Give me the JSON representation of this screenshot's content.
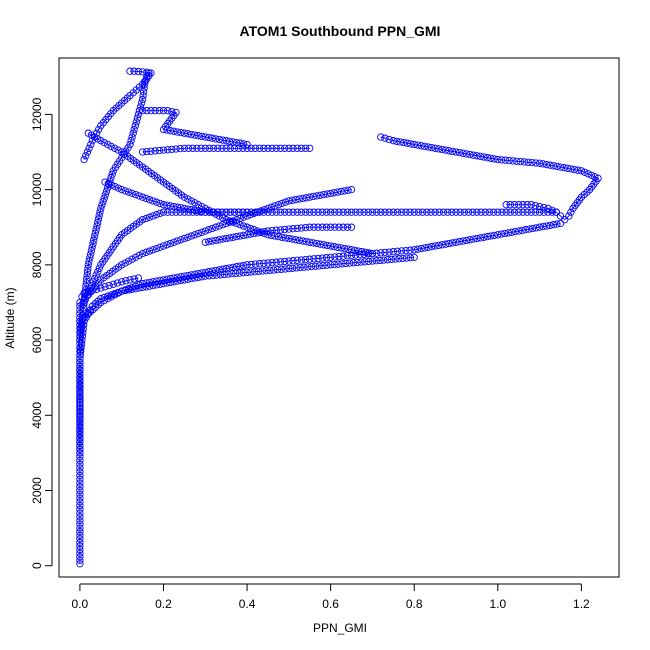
{
  "chart_data": {
    "type": "scatter",
    "title": "ATOM1 Southbound PPN_GMI",
    "xlabel": "PPN_GMI",
    "ylabel": "Altitude (m)",
    "xlim": [
      -0.05,
      1.29
    ],
    "ylim": [
      -300,
      13500
    ],
    "xticks": [
      0.0,
      0.2,
      0.4,
      0.6,
      0.8,
      1.0,
      1.2
    ],
    "xtick_labels": [
      "0.0",
      "0.2",
      "0.4",
      "0.6",
      "0.8",
      "1.0",
      "1.2"
    ],
    "yticks": [
      0,
      2000,
      4000,
      6000,
      8000,
      10000,
      12000
    ],
    "ytick_labels": [
      "0",
      "2000",
      "4000",
      "6000",
      "8000",
      "10000",
      "12000"
    ],
    "grid": false,
    "legend": "none",
    "marker": "open-circle",
    "color": "#0000ff",
    "series": [
      {
        "x": [
          0.0,
          0.0,
          0.0,
          0.0,
          0.0,
          0.0,
          0.0,
          0.0,
          0.0,
          0.0,
          0.005,
          0.01,
          0.02,
          0.04,
          0.07,
          0.1,
          0.14
        ],
        "y": [
          50,
          1000,
          2000,
          3000,
          4000,
          5000,
          5800,
          6400,
          6800,
          7000,
          7150,
          7250,
          7300,
          7350,
          7450,
          7550,
          7650
        ]
      },
      {
        "x": [
          0.0,
          0.0,
          0.01,
          0.03,
          0.05,
          0.1,
          0.15,
          0.2,
          0.25,
          0.3,
          0.4,
          0.5,
          0.6,
          0.7,
          0.8
        ],
        "y": [
          3000,
          5500,
          6500,
          6900,
          7100,
          7300,
          7400,
          7500,
          7600,
          7700,
          7800,
          7900,
          8000,
          8100,
          8200
        ]
      },
      {
        "x": [
          0.0,
          0.02,
          0.05,
          0.08,
          0.12,
          0.14,
          0.15,
          0.155,
          0.16,
          0.165
        ],
        "y": [
          6000,
          8000,
          9500,
          10500,
          11200,
          12000,
          12400,
          12800,
          13000,
          13100
        ]
      },
      {
        "x": [
          0.12,
          0.13,
          0.14,
          0.15,
          0.16,
          0.17,
          0.15,
          0.12,
          0.08,
          0.05,
          0.03,
          0.01
        ],
        "y": [
          13150,
          13150,
          13140,
          13130,
          13120,
          13100,
          12800,
          12500,
          12100,
          11700,
          11300,
          10800
        ]
      },
      {
        "x": [
          0.01,
          0.05,
          0.1,
          0.15,
          0.2,
          0.25,
          0.3,
          0.35,
          0.4,
          0.45,
          0.5,
          0.55,
          0.6,
          0.65,
          0.7,
          0.75,
          0.8,
          0.85,
          0.9,
          0.95,
          1.0,
          1.05,
          1.1,
          1.14
        ],
        "y": [
          7000,
          8000,
          8800,
          9200,
          9400,
          9400,
          9400,
          9400,
          9400,
          9400,
          9400,
          9400,
          9400,
          9400,
          9400,
          9400,
          9400,
          9400,
          9400,
          9400,
          9400,
          9400,
          9400,
          9400
        ]
      },
      {
        "x": [
          1.02,
          1.04,
          1.06,
          1.08,
          1.1,
          1.12,
          1.14,
          1.15,
          1.16,
          1.17,
          1.18,
          1.2,
          1.22,
          1.24,
          1.2,
          1.1,
          1.0,
          0.9,
          0.8,
          0.75,
          0.72
        ],
        "y": [
          9600,
          9600,
          9600,
          9600,
          9550,
          9500,
          9400,
          9300,
          9200,
          9300,
          9500,
          9800,
          10000,
          10300,
          10500,
          10700,
          10800,
          11000,
          11200,
          11300,
          11400
        ]
      },
      {
        "x": [
          0.7,
          0.65,
          0.6,
          0.55,
          0.5,
          0.45,
          0.4,
          0.35,
          0.3,
          0.25,
          0.2,
          0.15,
          0.1,
          0.05,
          0.02
        ],
        "y": [
          8300,
          8400,
          8500,
          8600,
          8700,
          8800,
          9000,
          9200,
          9500,
          9800,
          10200,
          10600,
          11000,
          11300,
          11500
        ]
      },
      {
        "x": [
          0.02,
          0.05,
          0.1,
          0.15,
          0.2,
          0.25,
          0.3,
          0.35,
          0.4,
          0.45,
          0.5,
          0.55,
          0.6,
          0.65
        ],
        "y": [
          7200,
          7600,
          8000,
          8300,
          8500,
          8700,
          8900,
          9100,
          9300,
          9500,
          9700,
          9800,
          9900,
          10000
        ]
      },
      {
        "x": [
          0.15,
          0.2,
          0.25,
          0.3,
          0.35,
          0.4,
          0.45,
          0.5,
          0.55
        ],
        "y": [
          11000,
          11050,
          11100,
          11100,
          11100,
          11100,
          11100,
          11100,
          11100
        ]
      },
      {
        "x": [
          0.3,
          0.35,
          0.4,
          0.45,
          0.5,
          0.55,
          0.6,
          0.65
        ],
        "y": [
          8600,
          8700,
          8800,
          8900,
          8950,
          9000,
          9000,
          9000
        ]
      },
      {
        "x": [
          0.0,
          0.05,
          0.1,
          0.15,
          0.2,
          0.25,
          0.3,
          0.35,
          0.4,
          0.45,
          0.5,
          0.55,
          0.6,
          0.65,
          0.7,
          0.75,
          0.8,
          0.85,
          0.9,
          0.95,
          1.0,
          1.05,
          1.1,
          1.15
        ],
        "y": [
          6500,
          7000,
          7300,
          7500,
          7600,
          7700,
          7800,
          7900,
          8000,
          8050,
          8100,
          8150,
          8200,
          8250,
          8300,
          8350,
          8400,
          8500,
          8600,
          8700,
          8800,
          8900,
          9000,
          9100
        ]
      },
      {
        "x": [
          0.06,
          0.1,
          0.15,
          0.2,
          0.25,
          0.3,
          0.35,
          0.4
        ],
        "y": [
          10200,
          10000,
          9800,
          9600,
          9500,
          9400,
          9400,
          9400
        ]
      },
      {
        "x": [
          0.15,
          0.17,
          0.19,
          0.21,
          0.23,
          0.2,
          0.25,
          0.3,
          0.35,
          0.4
        ],
        "y": [
          12100,
          12100,
          12100,
          12100,
          12050,
          11600,
          11500,
          11400,
          11300,
          11200
        ]
      }
    ]
  }
}
